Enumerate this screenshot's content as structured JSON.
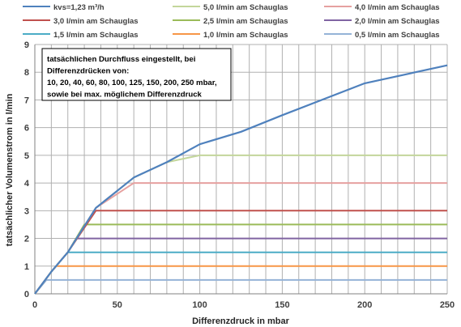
{
  "chart_data": {
    "type": "line",
    "xlabel": "Differenzdruck in mbar",
    "ylabel": "tatsächlicher Volumenstrom in l/min",
    "xlim": [
      0,
      250
    ],
    "ylim": [
      0,
      9
    ],
    "x_ticks": [
      0,
      50,
      100,
      150,
      200,
      250
    ],
    "y_ticks": [
      0,
      1,
      2,
      3,
      4,
      5,
      6,
      7,
      8,
      9
    ],
    "x_gridlines": [
      10,
      20,
      30,
      40,
      50,
      60,
      70,
      80,
      90,
      100,
      110,
      120,
      130,
      140,
      150,
      160,
      170,
      180,
      190,
      200,
      210,
      220,
      230,
      240,
      250
    ],
    "grid": true,
    "legend_position": "top",
    "annotation": [
      "tatsächlichen Durchfluss eingestellt, bei",
      "Differenzdrücken von:",
      "10, 20, 40, 60, 80, 100, 125, 150, 200, 250 mbar,",
      "sowie bei max. möglichem Differenzdruck"
    ],
    "series": [
      {
        "name": "kvs=1,23 m³/h",
        "color": "#4f81bd",
        "x": [
          0,
          10,
          20,
          37,
          60,
          80,
          100,
          125,
          150,
          200,
          250
        ],
        "y": [
          0,
          0.8,
          1.5,
          3.1,
          4.2,
          4.75,
          5.4,
          5.85,
          6.45,
          7.6,
          8.25
        ]
      },
      {
        "name": "5,0 l/min am Schauglas",
        "color": "#c3d69b",
        "x": [
          0,
          10,
          20,
          37,
          60,
          80,
          100,
          125,
          150,
          200,
          250
        ],
        "y": [
          0,
          0.8,
          1.5,
          3.1,
          4.2,
          4.75,
          5.0,
          5.0,
          5.0,
          5.0,
          5.0
        ]
      },
      {
        "name": "4,0 l/min am Schauglas",
        "color": "#e6a1a0",
        "x": [
          0,
          10,
          20,
          37,
          60,
          80,
          100,
          125,
          150,
          200,
          250
        ],
        "y": [
          0,
          0.8,
          1.5,
          3.1,
          4.0,
          4.0,
          4.0,
          4.0,
          4.0,
          4.0,
          4.0
        ]
      },
      {
        "name": "3,0 l/min am Schauglas",
        "color": "#c0504d",
        "x": [
          0,
          10,
          20,
          37,
          40,
          60,
          80,
          100,
          125,
          150,
          200,
          250
        ],
        "y": [
          0,
          0.8,
          1.5,
          3.0,
          3.0,
          3.0,
          3.0,
          3.0,
          3.0,
          3.0,
          3.0,
          3.0
        ]
      },
      {
        "name": "2,5 l/min am Schauglas",
        "color": "#9bbb59",
        "x": [
          0,
          10,
          20,
          30,
          40,
          60,
          80,
          100,
          125,
          150,
          200,
          250
        ],
        "y": [
          0,
          0.8,
          1.5,
          2.5,
          2.5,
          2.5,
          2.5,
          2.5,
          2.5,
          2.5,
          2.5,
          2.5
        ]
      },
      {
        "name": "2,0 l/min am Schauglas",
        "color": "#8064a2",
        "x": [
          0,
          10,
          20,
          25,
          40,
          60,
          80,
          100,
          125,
          150,
          200,
          250
        ],
        "y": [
          0,
          0.8,
          1.5,
          2.0,
          2.0,
          2.0,
          2.0,
          2.0,
          2.0,
          2.0,
          2.0,
          2.0
        ]
      },
      {
        "name": "1,5 l/min am Schauglas",
        "color": "#4bacc6",
        "x": [
          0,
          10,
          20,
          40,
          60,
          80,
          100,
          125,
          150,
          200,
          250
        ],
        "y": [
          0,
          0.8,
          1.5,
          1.5,
          1.5,
          1.5,
          1.5,
          1.5,
          1.5,
          1.5,
          1.5
        ]
      },
      {
        "name": "1,0 l/min am Schauglas",
        "color": "#f79646",
        "x": [
          0,
          10,
          13,
          20,
          40,
          60,
          80,
          100,
          125,
          150,
          200,
          250
        ],
        "y": [
          0,
          0.8,
          1.0,
          1.0,
          1.0,
          1.0,
          1.0,
          1.0,
          1.0,
          1.0,
          1.0,
          1.0
        ]
      },
      {
        "name": "0,5 l/min am Schauglas",
        "color": "#95b3d7",
        "x": [
          0,
          7,
          10,
          20,
          40,
          60,
          80,
          100,
          125,
          150,
          200,
          250
        ],
        "y": [
          0,
          0.5,
          0.5,
          0.5,
          0.5,
          0.5,
          0.5,
          0.5,
          0.5,
          0.5,
          0.5,
          0.5
        ]
      }
    ]
  }
}
